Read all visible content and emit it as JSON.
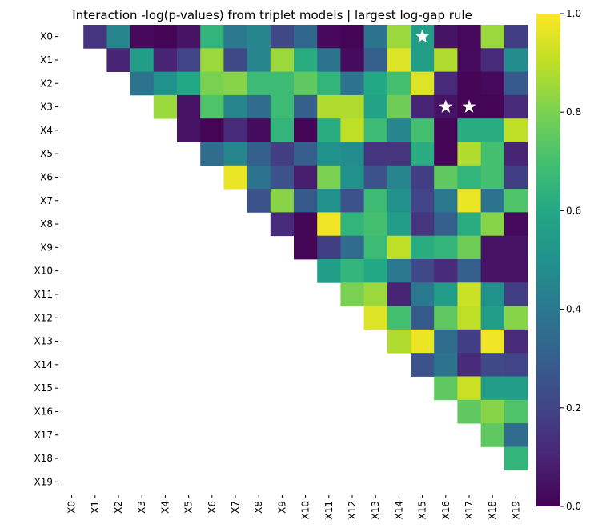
{
  "chart_data": {
    "type": "heatmap",
    "title": "Interaction -log(p-values) from triplet models | largest log-gap rule",
    "xlabel": "",
    "ylabel": "",
    "triangle": "upper",
    "colormap": "viridis",
    "vmin": 0.0,
    "vmax": 1.0,
    "colorbar_ticks": [
      "0.0",
      "0.2",
      "0.4",
      "0.6",
      "0.8",
      "1.0"
    ],
    "row_labels": [
      "X0",
      "X1",
      "X2",
      "X3",
      "X4",
      "X5",
      "X6",
      "X7",
      "X8",
      "X9",
      "X10",
      "X11",
      "X12",
      "X13",
      "X14",
      "X15",
      "X16",
      "X17",
      "X18",
      "X19"
    ],
    "col_labels": [
      "X0",
      "X1",
      "X2",
      "X3",
      "X4",
      "X5",
      "X6",
      "X7",
      "X8",
      "X9",
      "X10",
      "X11",
      "X12",
      "X13",
      "X14",
      "X15",
      "X16",
      "X17",
      "X18",
      "X19"
    ],
    "values": [
      [
        null,
        0.15,
        0.45,
        0.02,
        0.01,
        0.05,
        0.65,
        0.4,
        0.45,
        0.22,
        0.33,
        0.02,
        0.01,
        0.38,
        0.85,
        0.55,
        0.05,
        0.02,
        0.85,
        0.18
      ],
      [
        null,
        null,
        0.1,
        0.55,
        0.1,
        0.2,
        0.85,
        0.22,
        0.45,
        0.85,
        0.62,
        0.38,
        0.03,
        0.3,
        0.95,
        0.55,
        0.88,
        0.03,
        0.12,
        0.48
      ],
      [
        null,
        null,
        null,
        0.38,
        0.5,
        0.6,
        0.8,
        0.82,
        0.68,
        0.68,
        0.75,
        0.65,
        0.38,
        0.6,
        0.7,
        0.95,
        0.12,
        0.01,
        0.02,
        0.28
      ],
      [
        null,
        null,
        null,
        null,
        0.85,
        0.05,
        0.72,
        0.45,
        0.35,
        0.68,
        0.3,
        0.88,
        0.88,
        0.58,
        0.78,
        0.1,
        0.05,
        0.01,
        0.01,
        0.12
      ],
      [
        null,
        null,
        null,
        null,
        null,
        0.05,
        0.01,
        0.12,
        0.03,
        0.65,
        0.01,
        0.62,
        0.9,
        0.68,
        0.45,
        0.7,
        0.01,
        0.62,
        0.62,
        0.9
      ],
      [
        null,
        null,
        null,
        null,
        null,
        null,
        0.35,
        0.45,
        0.3,
        0.18,
        0.3,
        0.5,
        0.48,
        0.15,
        0.15,
        0.62,
        0.01,
        0.88,
        0.7,
        0.1
      ],
      [
        null,
        null,
        null,
        null,
        null,
        null,
        null,
        0.97,
        0.38,
        0.25,
        0.08,
        0.8,
        0.5,
        0.25,
        0.45,
        0.18,
        0.75,
        0.65,
        0.7,
        0.18
      ],
      [
        null,
        null,
        null,
        null,
        null,
        null,
        null,
        null,
        0.25,
        0.82,
        0.28,
        0.5,
        0.25,
        0.68,
        0.5,
        0.2,
        0.4,
        0.97,
        0.38,
        0.72
      ],
      [
        null,
        null,
        null,
        null,
        null,
        null,
        null,
        null,
        null,
        0.12,
        0.01,
        0.98,
        0.65,
        0.7,
        0.55,
        0.15,
        0.3,
        0.62,
        0.82,
        0.02
      ],
      [
        null,
        null,
        null,
        null,
        null,
        null,
        null,
        null,
        null,
        null,
        0.01,
        0.18,
        0.35,
        0.68,
        0.9,
        0.62,
        0.65,
        0.78,
        0.05,
        0.05
      ],
      [
        null,
        null,
        null,
        null,
        null,
        null,
        null,
        null,
        null,
        null,
        null,
        0.55,
        0.65,
        0.6,
        0.4,
        0.22,
        0.12,
        0.3,
        0.05,
        0.05
      ],
      [
        null,
        null,
        null,
        null,
        null,
        null,
        null,
        null,
        null,
        null,
        null,
        null,
        0.8,
        0.85,
        0.1,
        0.4,
        0.55,
        0.92,
        0.5,
        0.18
      ],
      [
        null,
        null,
        null,
        null,
        null,
        null,
        null,
        null,
        null,
        null,
        null,
        null,
        null,
        0.95,
        0.7,
        0.28,
        0.75,
        0.9,
        0.55,
        0.82
      ],
      [
        null,
        null,
        null,
        null,
        null,
        null,
        null,
        null,
        null,
        null,
        null,
        null,
        null,
        null,
        0.88,
        0.97,
        0.35,
        0.18,
        0.98,
        0.12
      ],
      [
        null,
        null,
        null,
        null,
        null,
        null,
        null,
        null,
        null,
        null,
        null,
        null,
        null,
        null,
        null,
        0.25,
        0.38,
        0.12,
        0.22,
        0.2
      ],
      [
        null,
        null,
        null,
        null,
        null,
        null,
        null,
        null,
        null,
        null,
        null,
        null,
        null,
        null,
        null,
        null,
        0.75,
        0.92,
        0.55,
        0.55
      ],
      [
        null,
        null,
        null,
        null,
        null,
        null,
        null,
        null,
        null,
        null,
        null,
        null,
        null,
        null,
        null,
        null,
        null,
        0.75,
        0.82,
        0.72
      ],
      [
        null,
        null,
        null,
        null,
        null,
        null,
        null,
        null,
        null,
        null,
        null,
        null,
        null,
        null,
        null,
        null,
        null,
        null,
        0.75,
        0.35
      ],
      [
        null,
        null,
        null,
        null,
        null,
        null,
        null,
        null,
        null,
        null,
        null,
        null,
        null,
        null,
        null,
        null,
        null,
        null,
        null,
        0.65
      ],
      [
        null,
        null,
        null,
        null,
        null,
        null,
        null,
        null,
        null,
        null,
        null,
        null,
        null,
        null,
        null,
        null,
        null,
        null,
        null,
        null
      ]
    ],
    "star_cells": [
      {
        "row": "X0",
        "col": "X15"
      },
      {
        "row": "X3",
        "col": "X16"
      },
      {
        "row": "X3",
        "col": "X17"
      }
    ],
    "star_color": "#ffffff",
    "background": "#ffffff"
  }
}
